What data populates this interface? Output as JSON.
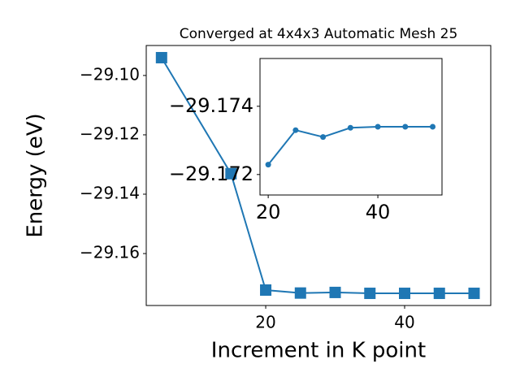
{
  "chart_data": [
    {
      "type": "line",
      "title": "Converged at 4x4x3 Automatic Mesh 25",
      "x_label": "Increment in K point",
      "y_label": "Energy (eV)",
      "x": [
        5,
        15,
        20,
        25,
        30,
        35,
        40,
        45,
        50
      ],
      "series": [
        {
          "color": "#1f77b4",
          "marker": "square",
          "values": [
            -29.094,
            -29.1331,
            -29.1723,
            -29.1733,
            -29.1731,
            -29.1734,
            -29.1734,
            -29.1734,
            -29.1734
          ]
        }
      ],
      "xlim": [
        2.8,
        52.4
      ],
      "ylim": [
        -29.1775,
        -29.0899
      ],
      "xticks": [
        20,
        40
      ],
      "yticks": [
        {
          "value": -29.16,
          "label": "−29.16"
        },
        {
          "value": -29.14,
          "label": "−29.14"
        },
        {
          "value": -29.12,
          "label": "−29.12"
        },
        {
          "value": -29.1,
          "label": "−29.10"
        }
      ]
    },
    {
      "type": "line",
      "x": [
        20,
        25,
        30,
        35,
        40,
        45,
        50
      ],
      "series": [
        {
          "color": "#1f77b4",
          "marker": "circle",
          "values": [
            -29.17229,
            -29.1733,
            -29.1731,
            -29.17337,
            -29.1734,
            -29.1734,
            -29.1734
          ]
        }
      ],
      "xlim": [
        18.5,
        51.7
      ],
      "ylim": [
        -29.1714,
        -29.1754
      ],
      "xticks": [
        20,
        40
      ],
      "yticks": [
        {
          "value": -29.172,
          "label": "−29.172"
        },
        {
          "value": -29.174,
          "label": "−29.174"
        }
      ]
    }
  ]
}
